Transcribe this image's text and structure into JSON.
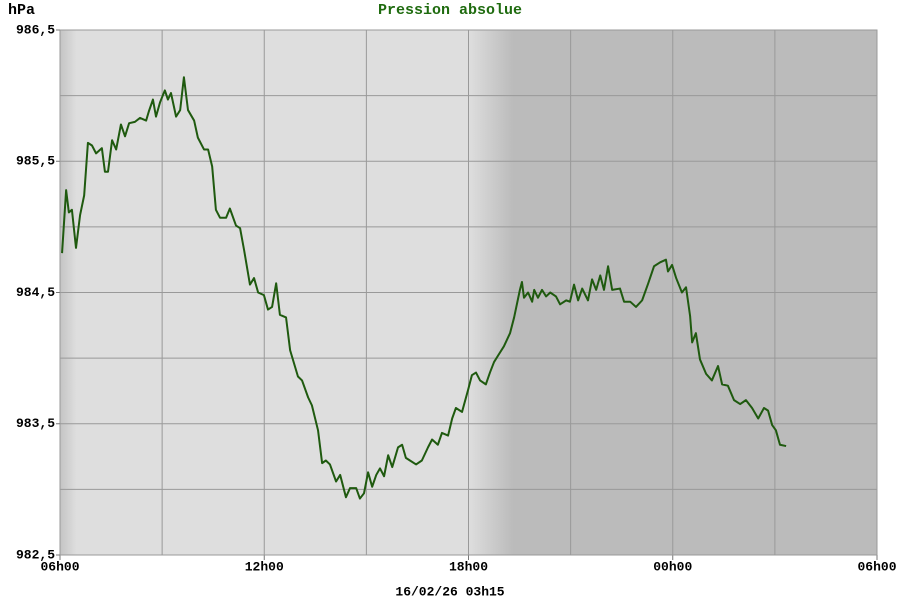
{
  "chart_data": {
    "type": "line",
    "title": "Pression absolue",
    "ylabel": "hPa",
    "footer": "16/02/26 03h15",
    "color": "#1f5a0f",
    "xlim": [
      6,
      30
    ],
    "xticks": [
      {
        "value": 6,
        "label": "06h00"
      },
      {
        "value": 12,
        "label": "12h00"
      },
      {
        "value": 18,
        "label": "18h00"
      },
      {
        "value": 24,
        "label": "00h00"
      },
      {
        "value": 30,
        "label": "06h00"
      }
    ],
    "xgrid_minor": [
      9,
      15,
      21,
      27
    ],
    "ylim": [
      982.5,
      986.5
    ],
    "yticks": [
      {
        "value": 982.5,
        "label": "982,5"
      },
      {
        "value": 983.5,
        "label": "983,5"
      },
      {
        "value": 984.5,
        "label": "984,5"
      },
      {
        "value": 985.5,
        "label": "985,5"
      },
      {
        "value": 986.5,
        "label": "986,5"
      }
    ],
    "ygrid_minor": [
      983,
      984,
      985,
      986
    ],
    "grid": true,
    "x": [
      6.06,
      6.18,
      6.26,
      6.35,
      6.47,
      6.59,
      6.71,
      6.82,
      6.94,
      7.06,
      7.23,
      7.32,
      7.41,
      7.53,
      7.65,
      7.79,
      7.91,
      8.03,
      8.2,
      8.35,
      8.53,
      8.61,
      8.73,
      8.82,
      8.94,
      9.08,
      9.17,
      9.26,
      9.41,
      9.53,
      9.64,
      9.76,
      9.94,
      10.05,
      10.23,
      10.35,
      10.47,
      10.58,
      10.7,
      10.88,
      10.99,
      11.17,
      11.29,
      11.41,
      11.58,
      11.7,
      11.82,
      11.99,
      12.11,
      12.23,
      12.35,
      12.46,
      12.64,
      12.76,
      12.99,
      13.11,
      13.29,
      13.4,
      13.58,
      13.7,
      13.81,
      13.93,
      14.11,
      14.23,
      14.4,
      14.52,
      14.7,
      14.81,
      14.93,
      15.05,
      15.17,
      15.29,
      15.4,
      15.52,
      15.64,
      15.76,
      15.93,
      16.05,
      16.16,
      16.28,
      16.46,
      16.63,
      16.81,
      16.93,
      17.1,
      17.22,
      17.4,
      17.52,
      17.63,
      17.81,
      17.99,
      18.1,
      18.22,
      18.34,
      18.51,
      18.63,
      18.75,
      18.87,
      19.04,
      19.22,
      19.34,
      19.51,
      19.57,
      19.63,
      19.75,
      19.87,
      19.93,
      20.04,
      20.16,
      20.28,
      20.4,
      20.57,
      20.69,
      20.87,
      20.98,
      21.1,
      21.22,
      21.34,
      21.51,
      21.63,
      21.75,
      21.87,
      21.98,
      22.1,
      22.22,
      22.45,
      22.57,
      22.75,
      22.92,
      23.1,
      23.28,
      23.45,
      23.63,
      23.8,
      23.86,
      23.98,
      24.1,
      24.27,
      24.39,
      24.51,
      24.57,
      24.68,
      24.8,
      24.98,
      25.15,
      25.33,
      25.45,
      25.62,
      25.8,
      25.98,
      26.15,
      26.33,
      26.51,
      26.68,
      26.8,
      26.92,
      27.03,
      27.15,
      27.33
    ],
    "values": [
      984.8,
      985.28,
      985.11,
      985.13,
      984.84,
      985.09,
      985.24,
      985.64,
      985.62,
      985.56,
      985.6,
      985.42,
      985.42,
      985.66,
      985.59,
      985.78,
      985.69,
      985.79,
      985.8,
      985.83,
      985.81,
      985.88,
      985.97,
      985.84,
      985.95,
      986.04,
      985.97,
      986.02,
      985.84,
      985.89,
      986.14,
      985.89,
      985.81,
      985.68,
      985.59,
      985.59,
      985.46,
      985.13,
      985.07,
      985.07,
      985.14,
      985.01,
      984.99,
      984.82,
      984.56,
      984.61,
      984.5,
      984.48,
      984.37,
      984.39,
      984.57,
      984.33,
      984.31,
      984.06,
      983.86,
      983.83,
      983.7,
      983.64,
      983.45,
      983.2,
      983.22,
      983.19,
      983.06,
      983.11,
      982.94,
      983.01,
      983.01,
      982.93,
      982.97,
      983.13,
      983.02,
      983.11,
      983.16,
      983.1,
      983.26,
      983.17,
      983.32,
      983.34,
      983.24,
      983.22,
      983.19,
      983.22,
      983.32,
      983.38,
      983.34,
      983.43,
      983.41,
      983.54,
      983.62,
      983.59,
      983.76,
      983.87,
      983.89,
      983.83,
      983.8,
      983.89,
      983.97,
      984.02,
      984.09,
      984.19,
      984.31,
      984.52,
      984.58,
      984.46,
      984.5,
      984.43,
      984.52,
      984.46,
      984.52,
      984.47,
      984.5,
      984.47,
      984.41,
      984.44,
      984.43,
      984.56,
      984.44,
      984.53,
      984.44,
      984.6,
      984.52,
      984.63,
      984.52,
      984.7,
      984.52,
      984.53,
      984.43,
      984.43,
      984.39,
      984.44,
      984.57,
      984.7,
      984.73,
      984.75,
      984.66,
      984.71,
      984.61,
      984.5,
      984.54,
      984.32,
      984.12,
      984.19,
      983.99,
      983.88,
      983.83,
      983.94,
      983.8,
      983.79,
      983.68,
      983.65,
      983.68,
      983.62,
      983.54,
      983.62,
      983.6,
      983.49,
      983.45,
      983.34,
      983.33
    ]
  }
}
